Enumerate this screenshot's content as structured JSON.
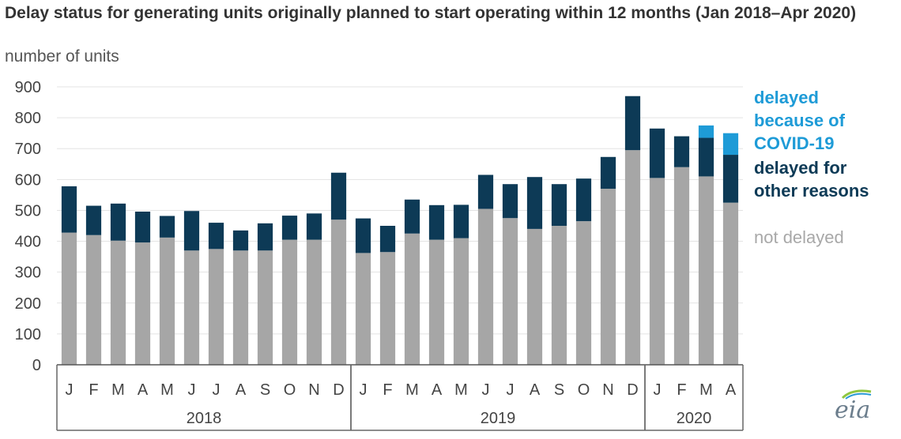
{
  "title": "Delay status for generating units originally planned to start operating within 12 months (Jan 2018–Apr 2020)",
  "units_label": "number of units",
  "logo_text": "eia",
  "colors": {
    "not_delayed": "#a6a6a6",
    "delayed_other": "#0d3a56",
    "delayed_covid": "#1e9bd7"
  },
  "chart_data": {
    "type": "bar",
    "stacked": true,
    "categories": [
      "J",
      "F",
      "M",
      "A",
      "M",
      "J",
      "J",
      "A",
      "S",
      "O",
      "N",
      "D",
      "J",
      "F",
      "M",
      "A",
      "M",
      "J",
      "J",
      "A",
      "S",
      "O",
      "N",
      "D",
      "J",
      "F",
      "M",
      "A"
    ],
    "years": [
      {
        "label": "2018",
        "start": 0,
        "count": 12
      },
      {
        "label": "2019",
        "start": 12,
        "count": 12
      },
      {
        "label": "2020",
        "start": 24,
        "count": 4
      }
    ],
    "series": [
      {
        "name": "not delayed",
        "values": [
          428,
          420,
          402,
          396,
          412,
          370,
          375,
          370,
          370,
          405,
          405,
          470,
          362,
          365,
          425,
          405,
          410,
          505,
          475,
          440,
          450,
          465,
          570,
          695,
          605,
          640,
          610,
          525
        ]
      },
      {
        "name": "delayed for other reasons",
        "values": [
          150,
          95,
          120,
          100,
          70,
          128,
          85,
          65,
          88,
          78,
          85,
          152,
          112,
          85,
          110,
          112,
          108,
          110,
          110,
          168,
          135,
          138,
          103,
          175,
          160,
          100,
          125,
          155
        ]
      },
      {
        "name": "delayed because of COVID-19",
        "values": [
          0,
          0,
          0,
          0,
          0,
          0,
          0,
          0,
          0,
          0,
          0,
          0,
          0,
          0,
          0,
          0,
          0,
          0,
          0,
          0,
          0,
          0,
          0,
          0,
          0,
          0,
          40,
          70
        ]
      }
    ],
    "yticks": [
      0,
      100,
      200,
      300,
      400,
      500,
      600,
      700,
      800,
      900
    ],
    "ylim": [
      0,
      900
    ],
    "grid": true,
    "legend": [
      {
        "label": "delayed\nbecause of\nCOVID-19"
      },
      {
        "label": "delayed for\nother reasons"
      },
      {
        "label": "not delayed"
      }
    ]
  }
}
